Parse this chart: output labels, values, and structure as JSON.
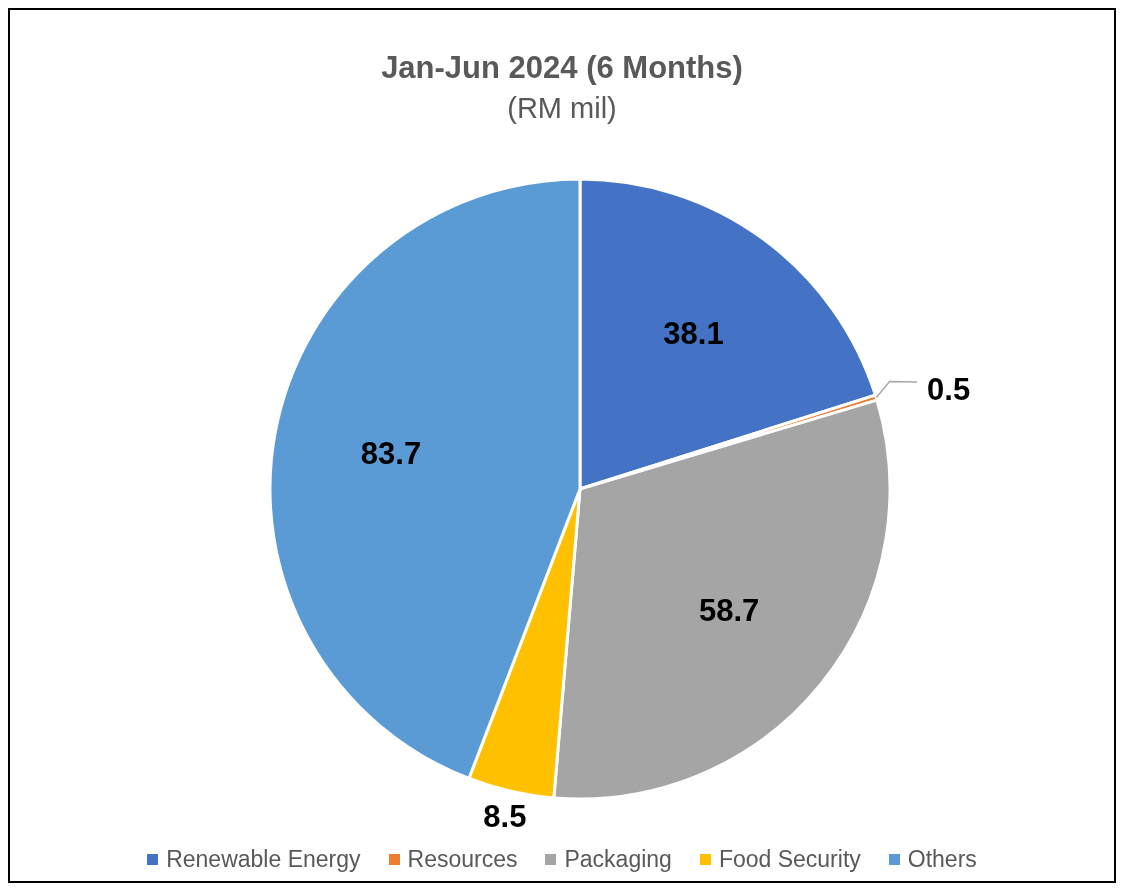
{
  "chart_data": {
    "type": "pie",
    "title": "Jan-Jun 2024 (6 Months)",
    "subtitle": "(RM mil)",
    "categories": [
      "Renewable Energy",
      "Resources",
      "Packaging",
      "Food Security",
      "Others"
    ],
    "values": [
      38.1,
      0.5,
      58.7,
      8.5,
      83.7
    ],
    "colors": [
      "#4472c4",
      "#ed7d31",
      "#a5a5a5",
      "#ffc000",
      "#5b9bd5"
    ],
    "data_labels": true,
    "legend": "bottom"
  }
}
